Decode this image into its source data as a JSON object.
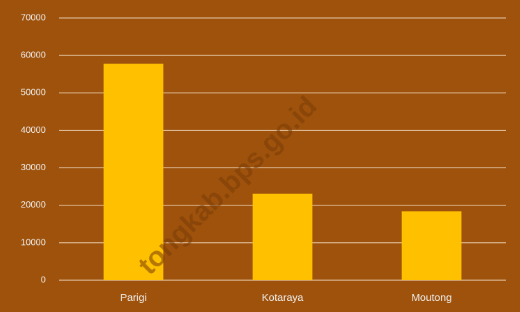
{
  "chart_data": {
    "type": "bar",
    "categories": [
      "Parigi",
      "Kotaraya",
      "Moutong"
    ],
    "values": [
      57800,
      23100,
      18400
    ],
    "color": "#ffc000",
    "ylim": [
      0,
      70000
    ],
    "yticks": [
      0,
      10000,
      20000,
      30000,
      40000,
      50000,
      60000,
      70000
    ],
    "grid": true,
    "watermark": "tongkab.bps.go.id"
  }
}
